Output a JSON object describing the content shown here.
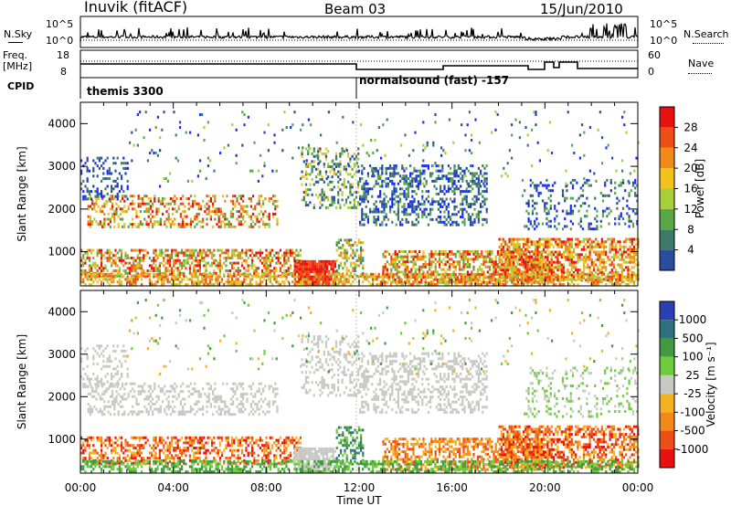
{
  "header": {
    "station": "Inuvik (fitACF)",
    "beam": "Beam 03",
    "date": "15/Jun/2010"
  },
  "top_panels": {
    "nsky_label": "N.Sky",
    "nsky_ticks": [
      "10^5",
      "10^0"
    ],
    "nsearch_label": "N.Search",
    "nsearch_ticks": [
      "10^5",
      "10^0"
    ],
    "freq_label": "Freq.",
    "freq_unit": "[MHz]",
    "freq_ticks": [
      "18",
      "8"
    ],
    "nave_label": "Nave",
    "nave_ticks": [
      "60",
      "0"
    ],
    "cpid_label": "CPID",
    "cpid_segments": [
      {
        "label": "themis 3300",
        "start_hour": 0
      },
      {
        "label": "normalsound (fast) -157",
        "start_hour": 12
      }
    ]
  },
  "colors": {
    "power_scale": [
      "#1a2bff",
      "#2a4d9e",
      "#3e7a6a",
      "#5aa74a",
      "#a8cf3a",
      "#f2c21a",
      "#f28a1a",
      "#ef4d16",
      "#e8110f"
    ],
    "velocity_scale": [
      "#e8110f",
      "#ef4d16",
      "#f28a1a",
      "#f4b21f",
      "#c8c8c4",
      "#6ccc3a",
      "#3f9b3e",
      "#2f6f80",
      "#2c3fb5"
    ]
  },
  "chart_data": [
    {
      "type": "heatmap",
      "name": "power",
      "ylabel": "Slant Range [km]",
      "yticks": [
        "1000",
        "2000",
        "3000",
        "4000"
      ],
      "ylim": [
        200,
        4500
      ],
      "xlim": [
        "00:00",
        "24:00"
      ],
      "colorbar_label": "Power [dB]",
      "colorbar_ticks": [
        "4",
        "8",
        "12",
        "16",
        "20",
        "24",
        "28"
      ],
      "clim": [
        0,
        32
      ]
    },
    {
      "type": "heatmap",
      "name": "velocity",
      "ylabel": "Slant Range [km]",
      "yticks": [
        "1000",
        "2000",
        "3000",
        "4000"
      ],
      "ylim": [
        200,
        4500
      ],
      "xlim": [
        "00:00",
        "24:00"
      ],
      "xlabel": "Time UT",
      "xticks": [
        "00:00",
        "04:00",
        "08:00",
        "12:00",
        "16:00",
        "20:00",
        "00:00"
      ],
      "colorbar_label": "Velocity [m s⁻¹]",
      "colorbar_ticks": [
        "1000",
        "500",
        "100",
        "25",
        "-25",
        "-100",
        "-500",
        "-1000"
      ]
    }
  ]
}
